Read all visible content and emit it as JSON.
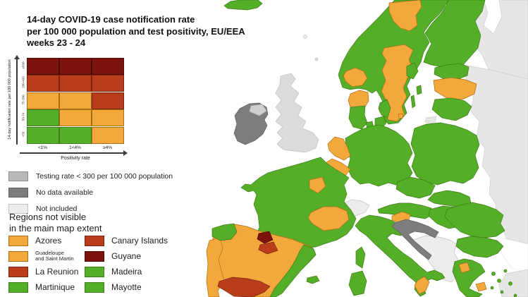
{
  "title": {
    "line1": "14-day COVID-19 case notification rate",
    "line2": "per 100 000 population and test positivity, EU/EEA",
    "line3": "weeks 23 - 24"
  },
  "matrix_legend": {
    "y_axis_label": "14-day notification rate per 100 000 population",
    "x_axis_label": "Positivity rate",
    "row_labels": [
      "≥500",
      "200-499",
      "75-200",
      "50-74",
      "<50"
    ],
    "col_labels": [
      "<1%",
      "1<4%",
      "≥4%"
    ],
    "cells": [
      [
        "darkred",
        "darkred",
        "darkred"
      ],
      [
        "red",
        "red",
        "red"
      ],
      [
        "orange",
        "orange",
        "red"
      ],
      [
        "green",
        "orange",
        "orange"
      ],
      [
        "green",
        "green",
        "orange"
      ]
    ]
  },
  "status_colors": {
    "green": "#54AE28",
    "orange": "#F3A83B",
    "red": "#BA3D1B",
    "darkred": "#7D130D",
    "testing": "#B9B9B9",
    "nodata": "#7D7D7D",
    "notincluded": "#ECECEC",
    "noneu": "#E6E6E6",
    "uk": "#DBDBDB",
    "ni": "#CFCFCF",
    "sea": "#FFFFFF"
  },
  "status_border_colors": {
    "green": "#3F7D17",
    "orange": "#A96F14",
    "red": "#7B2410",
    "darkred": "#4E0B06",
    "testing": "#8F8F8F",
    "nodata": "#5F5F5F",
    "notincluded": "#C2C2C2",
    "noneu": "#CDCDCD",
    "uk": "#C2C2C2",
    "ni": "#B5B5B5",
    "sea": "#E8E8E8"
  },
  "gray_legend": [
    {
      "status": "testing",
      "label": "Testing rate < 300 per 100 000 population"
    },
    {
      "status": "nodata",
      "label": "No data available"
    },
    {
      "status": "notincluded",
      "label": "Not included"
    }
  ],
  "regions_not_visible": {
    "heading_line1": "Regions not visible",
    "heading_line2": "in the main map extent",
    "items": [
      {
        "label": "Azores",
        "status": "orange"
      },
      {
        "label": "Canary Islands",
        "status": "red"
      },
      {
        "label": "Guadeloupe",
        "label2": "and Saint Martin",
        "status": "orange"
      },
      {
        "label": "Guyane",
        "status": "darkred"
      },
      {
        "label": "La Reunion",
        "status": "red"
      },
      {
        "label": "Madeira",
        "status": "green"
      },
      {
        "label": "Martinique",
        "status": "green"
      },
      {
        "label": "Mayotte",
        "status": "green"
      }
    ]
  },
  "map": {
    "regions": [
      {
        "id": "gray-northeast",
        "status": "noneu"
      },
      {
        "id": "gray-east",
        "status": "noneu"
      },
      {
        "id": "black-sea",
        "status": "sea"
      },
      {
        "id": "turkey",
        "status": "noneu"
      },
      {
        "id": "balkans",
        "status": "notincluded"
      },
      {
        "id": "uk",
        "status": "uk"
      },
      {
        "id": "faroe",
        "status": "notincluded"
      },
      {
        "id": "shetland",
        "status": "uk"
      },
      {
        "id": "switzerland",
        "status": "notincluded"
      },
      {
        "id": "ireland",
        "status": "nodata"
      },
      {
        "id": "northern-ireland",
        "status": "ni"
      },
      {
        "id": "scandinavia",
        "status": "green"
      },
      {
        "id": "sweden-north",
        "status": "orange"
      },
      {
        "id": "sweden-mid",
        "status": "orange"
      },
      {
        "id": "sweden-west-coast",
        "status": "green"
      },
      {
        "id": "sweden-stockholm",
        "status": "green"
      },
      {
        "id": "oland",
        "status": "green"
      },
      {
        "id": "gotland",
        "status": "green"
      },
      {
        "id": "bornholm",
        "status": "orange"
      },
      {
        "id": "norway-south",
        "status": "orange"
      },
      {
        "id": "finland",
        "status": "green"
      },
      {
        "id": "estonia",
        "status": "green"
      },
      {
        "id": "latvia",
        "status": "orange"
      },
      {
        "id": "lithuania",
        "status": "green"
      },
      {
        "id": "kaliningrad",
        "status": "noneu"
      },
      {
        "id": "denmark-north",
        "status": "orange"
      },
      {
        "id": "denmark-jutland",
        "status": "green"
      },
      {
        "id": "funen",
        "status": "green"
      },
      {
        "id": "zealand",
        "status": "green"
      },
      {
        "id": "germany",
        "status": "green"
      },
      {
        "id": "netherlands",
        "status": "orange"
      },
      {
        "id": "belgium",
        "status": "orange"
      },
      {
        "id": "poland",
        "status": "green"
      },
      {
        "id": "czechia",
        "status": "green"
      },
      {
        "id": "slovakia",
        "status": "green"
      },
      {
        "id": "austria",
        "status": "green"
      },
      {
        "id": "hungary",
        "status": "green"
      },
      {
        "id": "france",
        "status": "green"
      },
      {
        "id": "france-idf",
        "status": "orange"
      },
      {
        "id": "france-ara",
        "status": "orange"
      },
      {
        "id": "corsica",
        "status": "green"
      },
      {
        "id": "sardinia",
        "status": "green"
      },
      {
        "id": "spain",
        "status": "orange"
      },
      {
        "id": "portugal",
        "status": "orange"
      },
      {
        "id": "galicia",
        "status": "green"
      },
      {
        "id": "navarra",
        "status": "darkred"
      },
      {
        "id": "la-rioja",
        "status": "red"
      },
      {
        "id": "spain-east",
        "status": "green"
      },
      {
        "id": "andalusia",
        "status": "red"
      },
      {
        "id": "balearics",
        "status": "green"
      },
      {
        "id": "italy",
        "status": "green"
      },
      {
        "id": "calabria",
        "status": "orange"
      },
      {
        "id": "slovenia",
        "status": "orange"
      },
      {
        "id": "croatia",
        "status": "nodata"
      },
      {
        "id": "romania",
        "status": "green"
      },
      {
        "id": "bulgaria",
        "status": "green"
      },
      {
        "id": "greece",
        "status": "green"
      },
      {
        "id": "greece-wmac",
        "status": "orange"
      },
      {
        "id": "greece-attica",
        "status": "orange"
      },
      {
        "id": "greek-islands",
        "status": "green"
      },
      {
        "id": "iceland",
        "status": "green"
      }
    ]
  }
}
